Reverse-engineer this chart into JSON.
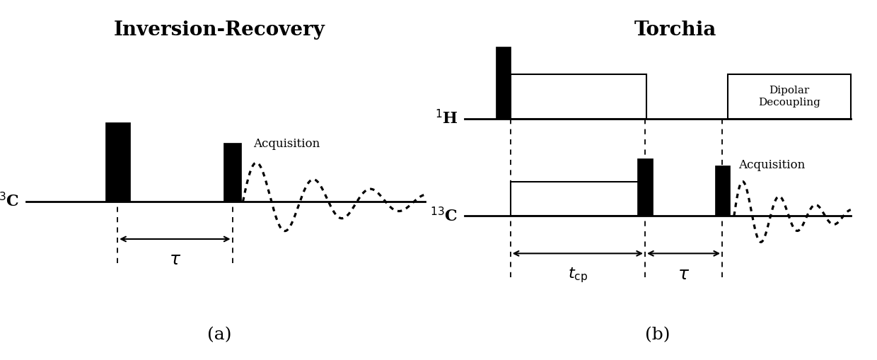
{
  "title_a": "Inversion-Recovery",
  "title_b": "Torchia",
  "label_13C": "$^{13}$C",
  "label_1H": "$^{1}$H",
  "label_tau": "$\\tau$",
  "label_tcp": "$t_{\\mathrm{cp}}$",
  "label_acq": "Acquisition",
  "label_dipolar": "Dipolar\nDecoupling",
  "label_a": "(a)",
  "label_b": "(b)",
  "bg_color": "white"
}
